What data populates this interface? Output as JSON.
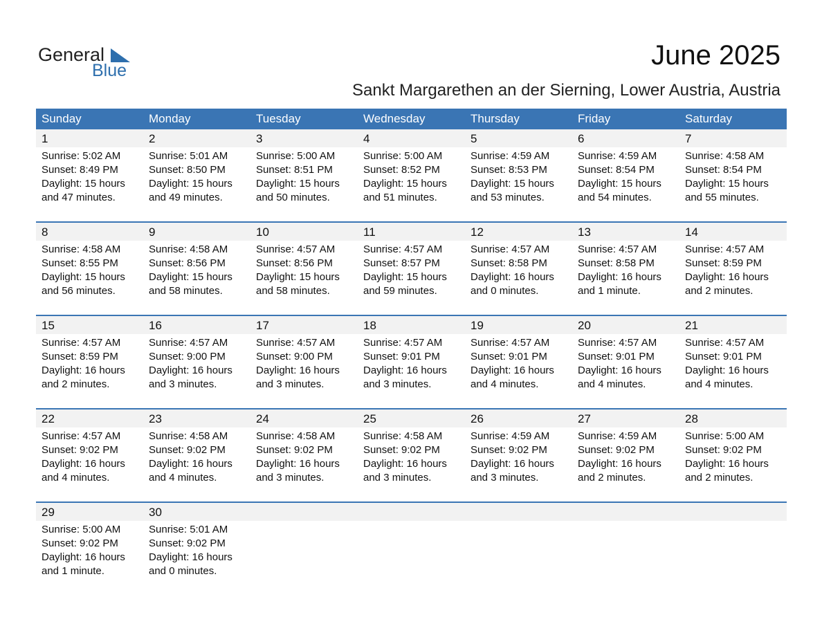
{
  "header": {
    "logo_general": "General",
    "logo_blue": "Blue",
    "title": "June 2025",
    "subtitle": "Sankt Margarethen an der Sierning, Lower Austria, Austria"
  },
  "weekdays": [
    "Sunday",
    "Monday",
    "Tuesday",
    "Wednesday",
    "Thursday",
    "Friday",
    "Saturday"
  ],
  "days": [
    {
      "day": 1,
      "sunrise": "Sunrise: 5:02 AM",
      "sunset": "Sunset: 8:49 PM",
      "daylight": "Daylight: 15 hours",
      "minutes": "and 47 minutes."
    },
    {
      "day": 2,
      "sunrise": "Sunrise: 5:01 AM",
      "sunset": "Sunset: 8:50 PM",
      "daylight": "Daylight: 15 hours",
      "minutes": "and 49 minutes."
    },
    {
      "day": 3,
      "sunrise": "Sunrise: 5:00 AM",
      "sunset": "Sunset: 8:51 PM",
      "daylight": "Daylight: 15 hours",
      "minutes": "and 50 minutes."
    },
    {
      "day": 4,
      "sunrise": "Sunrise: 5:00 AM",
      "sunset": "Sunset: 8:52 PM",
      "daylight": "Daylight: 15 hours",
      "minutes": "and 51 minutes."
    },
    {
      "day": 5,
      "sunrise": "Sunrise: 4:59 AM",
      "sunset": "Sunset: 8:53 PM",
      "daylight": "Daylight: 15 hours",
      "minutes": "and 53 minutes."
    },
    {
      "day": 6,
      "sunrise": "Sunrise: 4:59 AM",
      "sunset": "Sunset: 8:54 PM",
      "daylight": "Daylight: 15 hours",
      "minutes": "and 54 minutes."
    },
    {
      "day": 7,
      "sunrise": "Sunrise: 4:58 AM",
      "sunset": "Sunset: 8:54 PM",
      "daylight": "Daylight: 15 hours",
      "minutes": "and 55 minutes."
    },
    {
      "day": 8,
      "sunrise": "Sunrise: 4:58 AM",
      "sunset": "Sunset: 8:55 PM",
      "daylight": "Daylight: 15 hours",
      "minutes": "and 56 minutes."
    },
    {
      "day": 9,
      "sunrise": "Sunrise: 4:58 AM",
      "sunset": "Sunset: 8:56 PM",
      "daylight": "Daylight: 15 hours",
      "minutes": "and 58 minutes."
    },
    {
      "day": 10,
      "sunrise": "Sunrise: 4:57 AM",
      "sunset": "Sunset: 8:56 PM",
      "daylight": "Daylight: 15 hours",
      "minutes": "and 58 minutes."
    },
    {
      "day": 11,
      "sunrise": "Sunrise: 4:57 AM",
      "sunset": "Sunset: 8:57 PM",
      "daylight": "Daylight: 15 hours",
      "minutes": "and 59 minutes."
    },
    {
      "day": 12,
      "sunrise": "Sunrise: 4:57 AM",
      "sunset": "Sunset: 8:58 PM",
      "daylight": "Daylight: 16 hours",
      "minutes": "and 0 minutes."
    },
    {
      "day": 13,
      "sunrise": "Sunrise: 4:57 AM",
      "sunset": "Sunset: 8:58 PM",
      "daylight": "Daylight: 16 hours",
      "minutes": "and 1 minute."
    },
    {
      "day": 14,
      "sunrise": "Sunrise: 4:57 AM",
      "sunset": "Sunset: 8:59 PM",
      "daylight": "Daylight: 16 hours",
      "minutes": "and 2 minutes."
    },
    {
      "day": 15,
      "sunrise": "Sunrise: 4:57 AM",
      "sunset": "Sunset: 8:59 PM",
      "daylight": "Daylight: 16 hours",
      "minutes": "and 2 minutes."
    },
    {
      "day": 16,
      "sunrise": "Sunrise: 4:57 AM",
      "sunset": "Sunset: 9:00 PM",
      "daylight": "Daylight: 16 hours",
      "minutes": "and 3 minutes."
    },
    {
      "day": 17,
      "sunrise": "Sunrise: 4:57 AM",
      "sunset": "Sunset: 9:00 PM",
      "daylight": "Daylight: 16 hours",
      "minutes": "and 3 minutes."
    },
    {
      "day": 18,
      "sunrise": "Sunrise: 4:57 AM",
      "sunset": "Sunset: 9:01 PM",
      "daylight": "Daylight: 16 hours",
      "minutes": "and 3 minutes."
    },
    {
      "day": 19,
      "sunrise": "Sunrise: 4:57 AM",
      "sunset": "Sunset: 9:01 PM",
      "daylight": "Daylight: 16 hours",
      "minutes": "and 4 minutes."
    },
    {
      "day": 20,
      "sunrise": "Sunrise: 4:57 AM",
      "sunset": "Sunset: 9:01 PM",
      "daylight": "Daylight: 16 hours",
      "minutes": "and 4 minutes."
    },
    {
      "day": 21,
      "sunrise": "Sunrise: 4:57 AM",
      "sunset": "Sunset: 9:01 PM",
      "daylight": "Daylight: 16 hours",
      "minutes": "and 4 minutes."
    },
    {
      "day": 22,
      "sunrise": "Sunrise: 4:57 AM",
      "sunset": "Sunset: 9:02 PM",
      "daylight": "Daylight: 16 hours",
      "minutes": "and 4 minutes."
    },
    {
      "day": 23,
      "sunrise": "Sunrise: 4:58 AM",
      "sunset": "Sunset: 9:02 PM",
      "daylight": "Daylight: 16 hours",
      "minutes": "and 4 minutes."
    },
    {
      "day": 24,
      "sunrise": "Sunrise: 4:58 AM",
      "sunset": "Sunset: 9:02 PM",
      "daylight": "Daylight: 16 hours",
      "minutes": "and 3 minutes."
    },
    {
      "day": 25,
      "sunrise": "Sunrise: 4:58 AM",
      "sunset": "Sunset: 9:02 PM",
      "daylight": "Daylight: 16 hours",
      "minutes": "and 3 minutes."
    },
    {
      "day": 26,
      "sunrise": "Sunrise: 4:59 AM",
      "sunset": "Sunset: 9:02 PM",
      "daylight": "Daylight: 16 hours",
      "minutes": "and 3 minutes."
    },
    {
      "day": 27,
      "sunrise": "Sunrise: 4:59 AM",
      "sunset": "Sunset: 9:02 PM",
      "daylight": "Daylight: 16 hours",
      "minutes": "and 2 minutes."
    },
    {
      "day": 28,
      "sunrise": "Sunrise: 5:00 AM",
      "sunset": "Sunset: 9:02 PM",
      "daylight": "Daylight: 16 hours",
      "minutes": "and 2 minutes."
    },
    {
      "day": 29,
      "sunrise": "Sunrise: 5:00 AM",
      "sunset": "Sunset: 9:02 PM",
      "daylight": "Daylight: 16 hours",
      "minutes": "and 1 minute."
    },
    {
      "day": 30,
      "sunrise": "Sunrise: 5:01 AM",
      "sunset": "Sunset: 9:02 PM",
      "daylight": "Daylight: 16 hours",
      "minutes": "and 0 minutes."
    }
  ]
}
